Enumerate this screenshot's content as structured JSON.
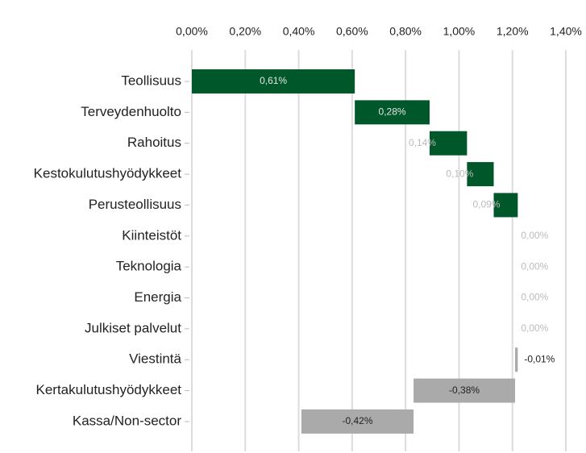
{
  "chart_data": {
    "type": "waterfall",
    "categories": [
      "Teollisuus",
      "Terveydenhuolto",
      "Rahoitus",
      "Kestokulutushyödykkeet",
      "Perusteollisuus",
      "Kiinteistöt",
      "Teknologia",
      "Energia",
      "Julkiset palvelut",
      "Viestintä",
      "Kertakulutushyödykkeet",
      "Kassa/Non-sector"
    ],
    "values": [
      0.61,
      0.28,
      0.14,
      0.1,
      0.09,
      0,
      0,
      0,
      0,
      -0.01,
      -0.38,
      -0.42
    ],
    "value_labels": [
      "0,61%",
      "0,28%",
      "0,14%",
      "0,10%",
      "0,09%",
      "0,00%",
      "0,00%",
      "0,00%",
      "0,00%",
      "-0,01%",
      "-0,38%",
      "-0,42%"
    ],
    "color_positive": "#00572a",
    "color_negative": "#aaaaaa",
    "xlim": [
      0,
      1.4
    ],
    "xticks": [
      {
        "value": 0,
        "label": "0,00%"
      },
      {
        "value": 0.2,
        "label": "0,20%"
      },
      {
        "value": 0.4,
        "label": "0,40%"
      },
      {
        "value": 0.6,
        "label": "0,60%"
      },
      {
        "value": 0.8,
        "label": "0,80%"
      },
      {
        "value": 1.0,
        "label": "1,00%"
      },
      {
        "value": 1.2,
        "label": "1,20%"
      },
      {
        "value": 1.4,
        "label": "1,40%"
      }
    ],
    "grid": true
  }
}
